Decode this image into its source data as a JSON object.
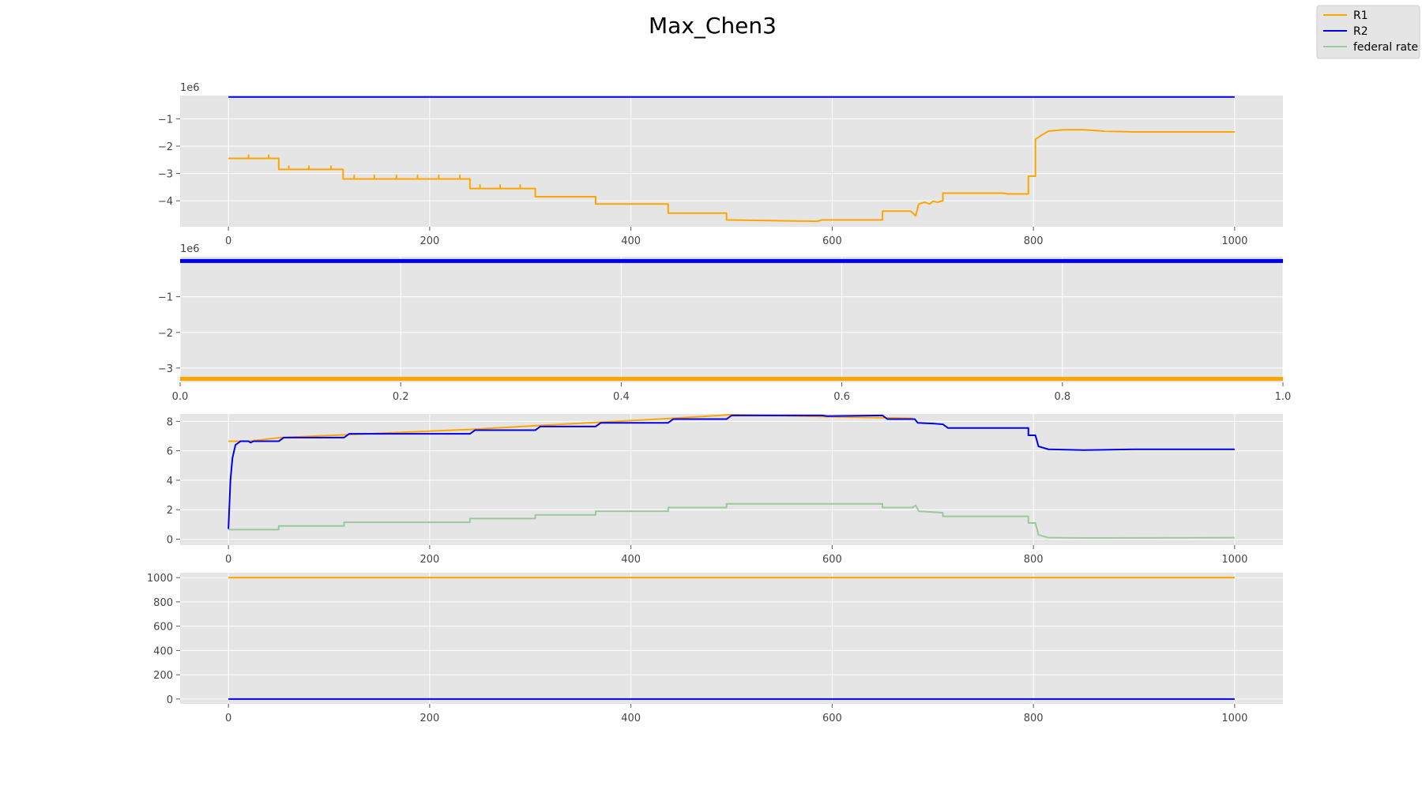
{
  "figure": {
    "title": "Max_Chen3"
  },
  "legend": {
    "placement": "top-right",
    "entries": [
      {
        "label": "R1",
        "color": "#FFA500"
      },
      {
        "label": "R2",
        "color": "#0000EE"
      },
      {
        "label": "federal rate",
        "color": "#9DC79D"
      }
    ]
  },
  "colors": {
    "axes_background": "#E5E5E5",
    "grid": "#FFFFFF",
    "R1": "#FFA500",
    "R2": "#0000EE",
    "federal_rate": "#9DC79D"
  },
  "chart_data": [
    {
      "type": "line",
      "xlim": [
        -48,
        1048
      ],
      "ylim": [
        -4.95,
        -0.15
      ],
      "y_scale_label": "1e6",
      "xticks": [
        0,
        200,
        400,
        600,
        800,
        1000
      ],
      "yticks": [
        -4,
        -3,
        -2,
        -1
      ],
      "ytick_labels": [
        "−4",
        "−3",
        "−2",
        "−1"
      ],
      "grid": true,
      "series": [
        {
          "name": "R2",
          "color_key": "R2",
          "points": [
            [
              0,
              -0.2
            ],
            [
              1000,
              -0.2
            ]
          ]
        },
        {
          "name": "R1",
          "color_key": "R1",
          "points": [
            [
              0,
              -2.45
            ],
            [
              20,
              -2.45
            ],
            [
              20,
              -2.33
            ],
            [
              20,
              -2.45
            ],
            [
              40,
              -2.45
            ],
            [
              40,
              -2.33
            ],
            [
              40,
              -2.45
            ],
            [
              50,
              -2.45
            ],
            [
              50,
              -2.85
            ],
            [
              60,
              -2.85
            ],
            [
              60,
              -2.73
            ],
            [
              60,
              -2.85
            ],
            [
              80,
              -2.85
            ],
            [
              80,
              -2.73
            ],
            [
              80,
              -2.85
            ],
            [
              102,
              -2.85
            ],
            [
              102,
              -2.73
            ],
            [
              102,
              -2.85
            ],
            [
              114,
              -2.85
            ],
            [
              114,
              -3.2
            ],
            [
              125,
              -3.2
            ],
            [
              125,
              -3.07
            ],
            [
              125,
              -3.2
            ],
            [
              145,
              -3.2
            ],
            [
              145,
              -3.07
            ],
            [
              145,
              -3.2
            ],
            [
              167,
              -3.2
            ],
            [
              167,
              -3.07
            ],
            [
              167,
              -3.2
            ],
            [
              188,
              -3.2
            ],
            [
              188,
              -3.07
            ],
            [
              188,
              -3.2
            ],
            [
              209,
              -3.2
            ],
            [
              209,
              -3.07
            ],
            [
              209,
              -3.2
            ],
            [
              230,
              -3.2
            ],
            [
              230,
              -3.07
            ],
            [
              230,
              -3.2
            ],
            [
              240,
              -3.2
            ],
            [
              240,
              -3.55
            ],
            [
              250,
              -3.55
            ],
            [
              250,
              -3.42
            ],
            [
              250,
              -3.55
            ],
            [
              270,
              -3.55
            ],
            [
              270,
              -3.42
            ],
            [
              270,
              -3.55
            ],
            [
              290,
              -3.55
            ],
            [
              290,
              -3.42
            ],
            [
              290,
              -3.55
            ],
            [
              305,
              -3.55
            ],
            [
              305,
              -3.85
            ],
            [
              365,
              -3.85
            ],
            [
              365,
              -4.12
            ],
            [
              437,
              -4.12
            ],
            [
              437,
              -4.45
            ],
            [
              495,
              -4.45
            ],
            [
              495,
              -4.7
            ],
            [
              585,
              -4.75
            ],
            [
              590,
              -4.7
            ],
            [
              650,
              -4.7
            ],
            [
              650,
              -4.38
            ],
            [
              678,
              -4.38
            ],
            [
              683,
              -4.55
            ],
            [
              686,
              -4.12
            ],
            [
              692,
              -4.05
            ],
            [
              697,
              -4.12
            ],
            [
              700,
              -4.02
            ],
            [
              705,
              -4.05
            ],
            [
              710,
              -4.0
            ],
            [
              710,
              -3.72
            ],
            [
              770,
              -3.72
            ],
            [
              775,
              -3.75
            ],
            [
              795,
              -3.75
            ],
            [
              795,
              -3.1
            ],
            [
              802,
              -3.1
            ],
            [
              802,
              -1.75
            ],
            [
              808,
              -1.6
            ],
            [
              815,
              -1.45
            ],
            [
              830,
              -1.4
            ],
            [
              850,
              -1.4
            ],
            [
              870,
              -1.45
            ],
            [
              900,
              -1.48
            ],
            [
              950,
              -1.48
            ],
            [
              1000,
              -1.48
            ]
          ]
        }
      ]
    },
    {
      "type": "line",
      "xlim": [
        0,
        1
      ],
      "ylim": [
        -3.4,
        0.12
      ],
      "y_scale_label": "1e6",
      "xticks": [
        0.0,
        0.2,
        0.4,
        0.6,
        0.8,
        1.0
      ],
      "xtick_labels": [
        "0.0",
        "0.2",
        "0.4",
        "0.6",
        "0.8",
        "1.0"
      ],
      "yticks": [
        -3,
        -2,
        -1
      ],
      "ytick_labels": [
        "−3",
        "−2",
        "−1"
      ],
      "grid": true,
      "series": [
        {
          "name": "R2",
          "color_key": "R2",
          "points": [
            [
              0,
              0.0
            ],
            [
              1,
              0.0
            ]
          ]
        },
        {
          "name": "R1",
          "color_key": "R1",
          "points": [
            [
              0,
              -3.3
            ],
            [
              1,
              -3.3
            ]
          ]
        }
      ]
    },
    {
      "type": "line",
      "xlim": [
        -48,
        1048
      ],
      "ylim": [
        -0.4,
        8.5
      ],
      "xticks": [
        0,
        200,
        400,
        600,
        800,
        1000
      ],
      "yticks": [
        0,
        2,
        4,
        6,
        8
      ],
      "grid": true,
      "series": [
        {
          "name": "R1",
          "color_key": "R1",
          "points": [
            [
              0,
              6.65
            ],
            [
              20,
              6.65
            ],
            [
              52,
              6.9
            ],
            [
              240,
              7.45
            ],
            [
              305,
              7.7
            ],
            [
              440,
              8.2
            ],
            [
              500,
              8.45
            ],
            [
              680,
              8.2
            ]
          ]
        },
        {
          "name": "federal rate",
          "color_key": "federal_rate",
          "points": [
            [
              0,
              0.65
            ],
            [
              50,
              0.65
            ],
            [
              50,
              0.9
            ],
            [
              115,
              0.9
            ],
            [
              115,
              1.15
            ],
            [
              240,
              1.15
            ],
            [
              240,
              1.4
            ],
            [
              305,
              1.4
            ],
            [
              305,
              1.65
            ],
            [
              365,
              1.65
            ],
            [
              365,
              1.9
            ],
            [
              437,
              1.9
            ],
            [
              437,
              2.15
            ],
            [
              495,
              2.15
            ],
            [
              495,
              2.4
            ],
            [
              650,
              2.4
            ],
            [
              650,
              2.15
            ],
            [
              680,
              2.15
            ],
            [
              683,
              2.3
            ],
            [
              686,
              1.9
            ],
            [
              710,
              1.8
            ],
            [
              710,
              1.55
            ],
            [
              795,
              1.55
            ],
            [
              795,
              1.1
            ],
            [
              802,
              1.1
            ],
            [
              805,
              0.3
            ],
            [
              815,
              0.1
            ],
            [
              850,
              0.08
            ],
            [
              1000,
              0.1
            ]
          ]
        },
        {
          "name": "R2",
          "color_key": "R2",
          "points": [
            [
              0,
              0.7
            ],
            [
              2,
              4.0
            ],
            [
              4,
              5.5
            ],
            [
              7,
              6.4
            ],
            [
              12,
              6.65
            ],
            [
              20,
              6.65
            ],
            [
              22,
              6.55
            ],
            [
              25,
              6.65
            ],
            [
              50,
              6.65
            ],
            [
              55,
              6.9
            ],
            [
              115,
              6.9
            ],
            [
              120,
              7.15
            ],
            [
              240,
              7.15
            ],
            [
              245,
              7.4
            ],
            [
              305,
              7.4
            ],
            [
              310,
              7.65
            ],
            [
              365,
              7.65
            ],
            [
              370,
              7.9
            ],
            [
              437,
              7.9
            ],
            [
              442,
              8.15
            ],
            [
              495,
              8.15
            ],
            [
              500,
              8.4
            ],
            [
              590,
              8.4
            ],
            [
              595,
              8.35
            ],
            [
              650,
              8.4
            ],
            [
              655,
              8.15
            ],
            [
              682,
              8.15
            ],
            [
              685,
              7.9
            ],
            [
              700,
              7.85
            ],
            [
              710,
              7.8
            ],
            [
              715,
              7.55
            ],
            [
              795,
              7.55
            ],
            [
              795,
              7.05
            ],
            [
              802,
              7.05
            ],
            [
              805,
              6.3
            ],
            [
              815,
              6.1
            ],
            [
              850,
              6.05
            ],
            [
              900,
              6.1
            ],
            [
              1000,
              6.1
            ]
          ]
        }
      ]
    },
    {
      "type": "line",
      "xlim": [
        -48,
        1048
      ],
      "ylim": [
        -40,
        1040
      ],
      "xticks": [
        0,
        200,
        400,
        600,
        800,
        1000
      ],
      "yticks": [
        0,
        200,
        400,
        600,
        800,
        1000
      ],
      "grid": true,
      "series": [
        {
          "name": "R1",
          "color_key": "R1",
          "points": [
            [
              0,
              1000
            ],
            [
              1000,
              1000
            ]
          ]
        },
        {
          "name": "R2",
          "color_key": "R2",
          "points": [
            [
              0,
              0
            ],
            [
              1000,
              0
            ]
          ]
        }
      ]
    }
  ]
}
